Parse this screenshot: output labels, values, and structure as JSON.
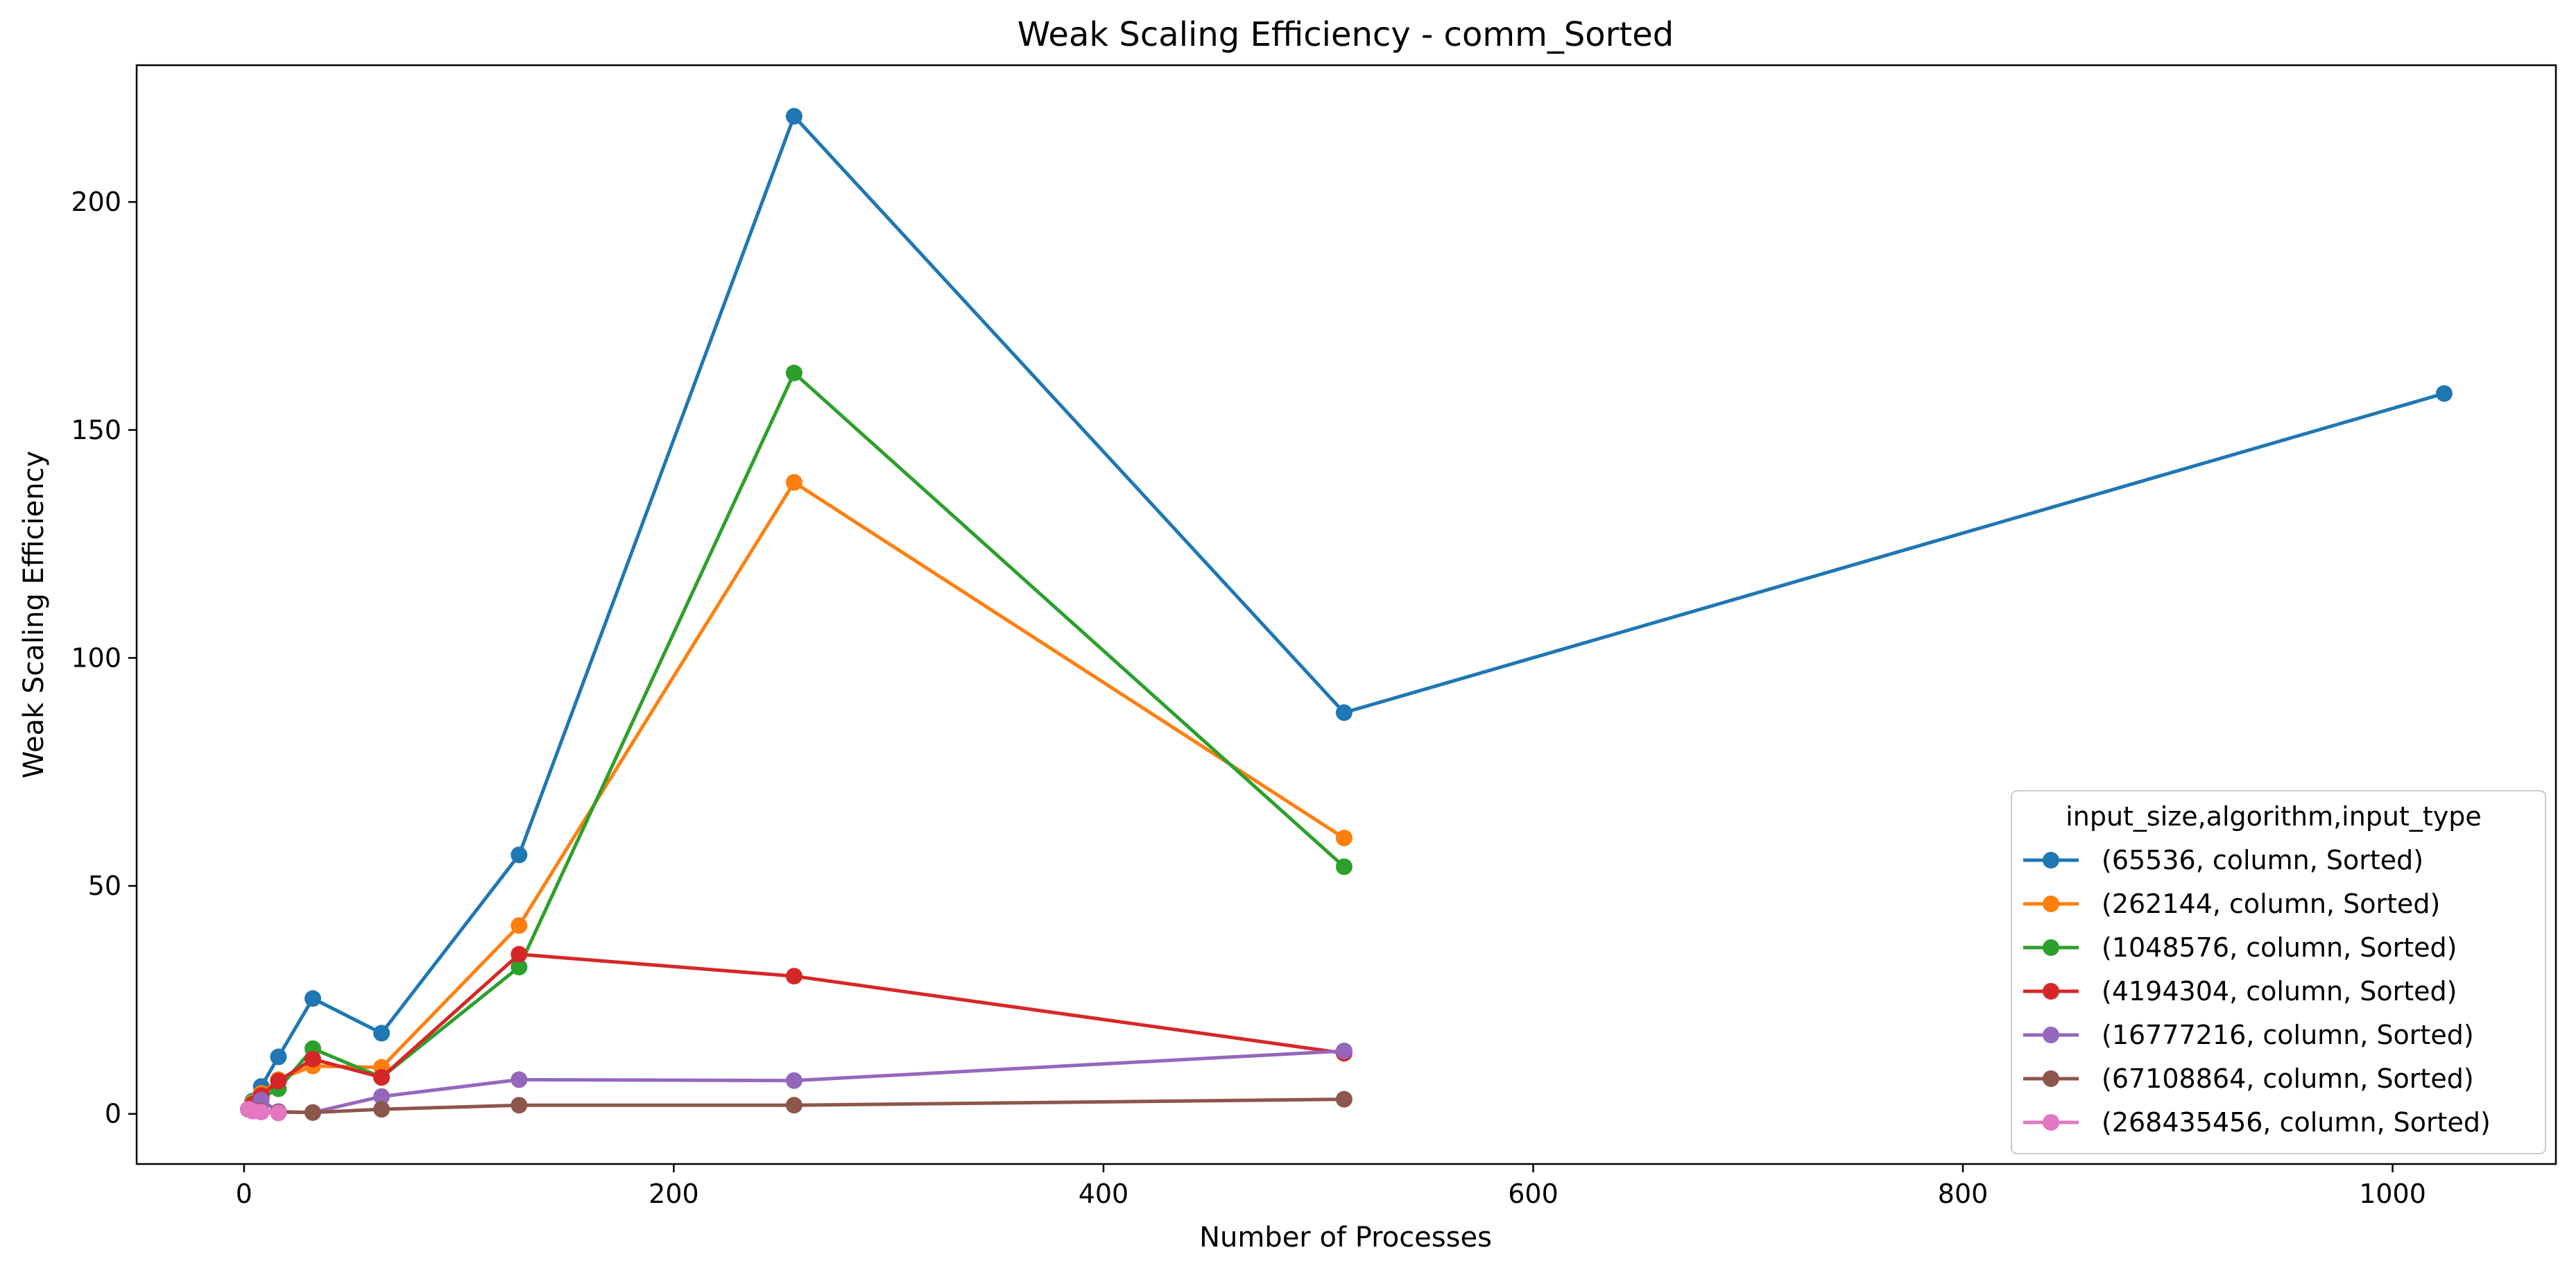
{
  "chart_data": {
    "type": "line",
    "title": "Weak Scaling Efficiency - comm_Sorted",
    "xlabel": "Number of Processes",
    "ylabel": "Weak Scaling Efficiency",
    "xlim": [
      -50,
      1076
    ],
    "ylim": [
      -11,
      230
    ],
    "xticks": [
      0,
      200,
      400,
      600,
      800,
      1000
    ],
    "yticks": [
      0,
      50,
      100,
      150,
      200
    ],
    "grid": false,
    "legend": {
      "title": "input_size,algorithm,input_type",
      "placement": "lower-right"
    },
    "series": [
      {
        "name": "(65536, column, Sorted)",
        "color": "#1f77b4",
        "points": [
          [
            2,
            1
          ],
          [
            4,
            2.8
          ],
          [
            8,
            6
          ],
          [
            16,
            12.5
          ],
          [
            32,
            25.3
          ],
          [
            64,
            17.7
          ],
          [
            128,
            56.8
          ],
          [
            256,
            218.8
          ],
          [
            512,
            88
          ],
          [
            1024,
            158
          ]
        ]
      },
      {
        "name": "(262144, column, Sorted)",
        "color": "#ff7f0e",
        "points": [
          [
            2,
            1
          ],
          [
            4,
            2.5
          ],
          [
            8,
            4.5
          ],
          [
            16,
            7.5
          ],
          [
            32,
            10.5
          ],
          [
            64,
            10.2
          ],
          [
            128,
            41.3
          ],
          [
            256,
            138.5
          ],
          [
            512,
            60.5
          ]
        ]
      },
      {
        "name": "(1048576, column, Sorted)",
        "color": "#2ca02c",
        "points": [
          [
            2,
            1
          ],
          [
            4,
            2.2
          ],
          [
            8,
            3.5
          ],
          [
            16,
            5.5
          ],
          [
            32,
            14.3
          ],
          [
            64,
            8
          ],
          [
            128,
            32.2
          ],
          [
            256,
            162.5
          ],
          [
            512,
            54.2
          ]
        ]
      },
      {
        "name": "(4194304, column, Sorted)",
        "color": "#d62728",
        "points": [
          [
            2,
            1
          ],
          [
            4,
            2
          ],
          [
            8,
            4
          ],
          [
            16,
            7.2
          ],
          [
            32,
            12
          ],
          [
            64,
            8
          ],
          [
            128,
            35
          ],
          [
            256,
            30.2
          ],
          [
            512,
            13.3
          ]
        ]
      },
      {
        "name": "(16777216, column, Sorted)",
        "color": "#9467bd",
        "points": [
          [
            2,
            1
          ],
          [
            4,
            1
          ],
          [
            8,
            3
          ],
          [
            16,
            0.5
          ],
          [
            32,
            0.3
          ],
          [
            64,
            3.8
          ],
          [
            128,
            7.5
          ],
          [
            256,
            7.3
          ],
          [
            512,
            13.8
          ]
        ]
      },
      {
        "name": "(67108864, column, Sorted)",
        "color": "#8c564b",
        "points": [
          [
            2,
            1
          ],
          [
            4,
            0.8
          ],
          [
            8,
            0.6
          ],
          [
            16,
            0.4
          ],
          [
            32,
            0.3
          ],
          [
            64,
            1
          ],
          [
            128,
            1.9
          ],
          [
            256,
            1.9
          ],
          [
            512,
            3.2
          ]
        ]
      },
      {
        "name": "(268435456, column, Sorted)",
        "color": "#e377c2",
        "points": [
          [
            2,
            1
          ],
          [
            4,
            0.6
          ],
          [
            8,
            0.4
          ],
          [
            16,
            0.2
          ]
        ]
      }
    ]
  }
}
